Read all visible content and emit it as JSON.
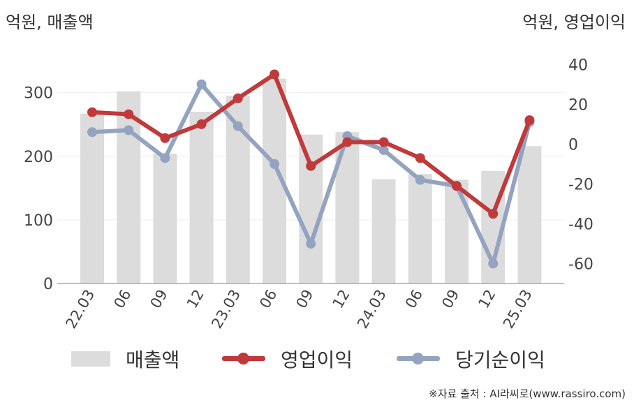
{
  "units": {
    "left": "억원, 매출액",
    "right": "억원, 영업이익"
  },
  "legend": {
    "bar_label": "매출액",
    "line1_label": "영업이익",
    "line2_label": "당기순이익"
  },
  "source": "※자료 출처 : AI라씨로(www.rassiro.com)",
  "colors": {
    "bar": "#dcdcdc",
    "operating_profit": "#c0393b",
    "net_income": "#94a3bf",
    "axis": "#aaaaaa",
    "grid": "#eeeeee"
  },
  "chart_data": {
    "type": "bar+line",
    "categories": [
      "22.03",
      "06",
      "09",
      "12",
      "23.03",
      "06",
      "09",
      "12",
      "24.03",
      "06",
      "09",
      "12",
      "25.03"
    ],
    "left_axis": {
      "ylim": [
        0,
        360
      ],
      "ticks": [
        0,
        100,
        200,
        300
      ]
    },
    "right_axis": {
      "ylim": [
        -70,
        45
      ],
      "ticks": [
        -60,
        -40,
        -20,
        0,
        20,
        40
      ]
    },
    "series": [
      {
        "name": "매출액",
        "type": "bar",
        "axis": "left",
        "values": [
          267,
          302,
          204,
          270,
          295,
          322,
          234,
          238,
          164,
          172,
          163,
          177,
          216
        ]
      },
      {
        "name": "영업이익",
        "type": "line",
        "axis": "right",
        "values": [
          16,
          15,
          3,
          10,
          23,
          35,
          -11,
          1,
          1,
          -7,
          -21,
          -35,
          12
        ]
      },
      {
        "name": "당기순이익",
        "type": "line",
        "axis": "right",
        "values": [
          6,
          7,
          -7,
          30,
          9,
          -10,
          -50,
          4,
          -3,
          -18,
          -21,
          -60,
          11
        ]
      }
    ],
    "grid": true,
    "legend_position": "bottom"
  }
}
